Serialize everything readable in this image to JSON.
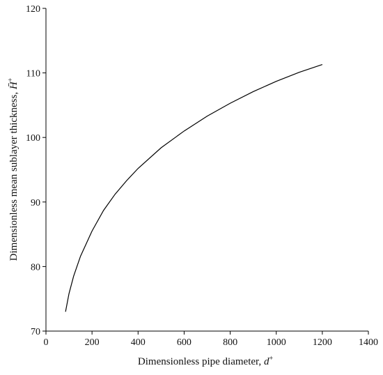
{
  "chart_data": {
    "type": "line",
    "title": "",
    "xlabel": "Dimensionless pipe diameter, ",
    "xlabel_symbol": "d",
    "xlabel_sup": "+",
    "ylabel": "Dimensionless mean sublayer thickness, ",
    "ylabel_symbol": "H̄",
    "ylabel_sup": "+",
    "xlim": [
      0,
      1400
    ],
    "ylim": [
      70,
      120
    ],
    "xticks": [
      0,
      200,
      400,
      600,
      800,
      1000,
      1200,
      1400
    ],
    "yticks": [
      70,
      80,
      90,
      100,
      110,
      120
    ],
    "grid": false,
    "series": [
      {
        "x": [
          85,
          100,
          120,
          150,
          200,
          250,
          300,
          350,
          400,
          500,
          600,
          700,
          800,
          900,
          1000,
          1100,
          1200
        ],
        "y": [
          73.0,
          75.8,
          78.5,
          81.6,
          85.5,
          88.7,
          91.2,
          93.3,
          95.2,
          98.4,
          101.0,
          103.3,
          105.3,
          107.1,
          108.7,
          110.1,
          111.3
        ]
      }
    ]
  }
}
